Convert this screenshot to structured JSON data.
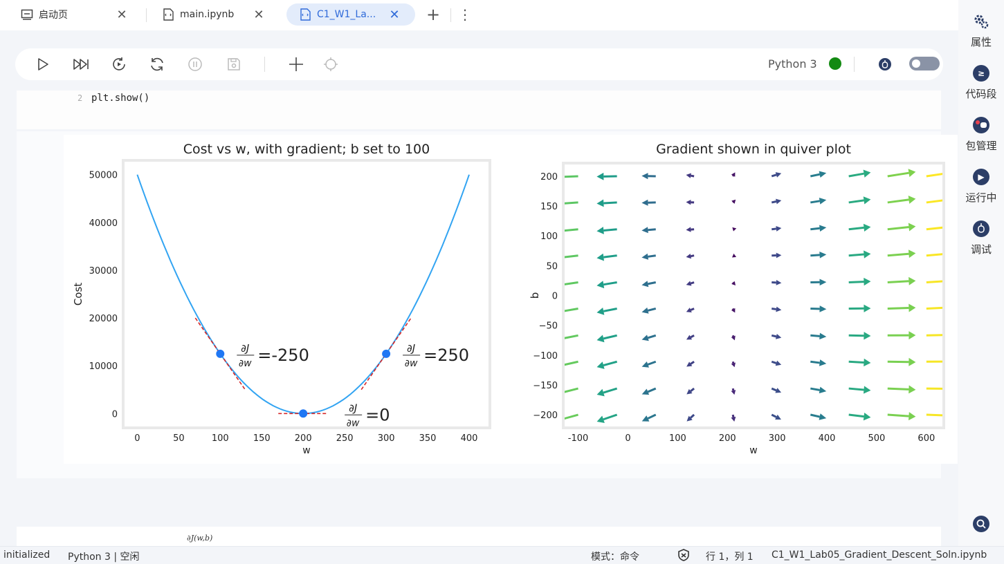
{
  "tabs": [
    {
      "label": "启动页",
      "icon": "launcher-icon"
    },
    {
      "label": "main.ipynb",
      "icon": "notebook-icon"
    },
    {
      "label": "C1_W1_La...",
      "icon": "notebook-icon",
      "active": true
    }
  ],
  "toolbar": {
    "kernel": "Python 3",
    "kernel_status_color": "#138a12"
  },
  "code_cell": {
    "line_number": "2",
    "code": "plt.show()"
  },
  "markdown_fragment": "∂J(w,b)",
  "sidebar": [
    {
      "label": "属性",
      "icon": "gears-icon"
    },
    {
      "label": "代码段",
      "icon": "snippet-icon"
    },
    {
      "label": "包管理",
      "icon": "package-icon"
    },
    {
      "label": "运行中",
      "icon": "running-icon"
    },
    {
      "label": "调试",
      "icon": "debug-icon"
    }
  ],
  "status": {
    "left1": "initialized",
    "left2": "Python 3 | 空闲",
    "mode": "模式：命令",
    "position": "行 1，列 1",
    "file": "C1_W1_Lab05_Gradient_Descent_Soln.ipynb"
  },
  "chart_data": [
    {
      "type": "line",
      "title": "Cost vs w, with gradient; b set to 100",
      "xlabel": "w",
      "ylabel": "Cost",
      "xlim": [
        -17,
        425
      ],
      "ylim": [
        -3000,
        53000
      ],
      "xticks": [
        0,
        50,
        100,
        150,
        200,
        250,
        300,
        350,
        400
      ],
      "yticks": [
        0,
        10000,
        20000,
        30000,
        40000,
        50000
      ],
      "series": [
        {
          "points": [
            [
              0,
              50000
            ],
            [
              25,
              38281
            ],
            [
              50,
              28125
            ],
            [
              75,
              19531
            ],
            [
              100,
              12500
            ],
            [
              125,
              7031
            ],
            [
              150,
              3125
            ],
            [
              175,
              781
            ],
            [
              200,
              0
            ],
            [
              225,
              781
            ],
            [
              250,
              3125
            ],
            [
              275,
              7031
            ],
            [
              300,
              12500
            ],
            [
              325,
              19531
            ],
            [
              350,
              28125
            ],
            [
              375,
              38281
            ],
            [
              400,
              50000
            ]
          ],
          "color": "#32a4f2"
        }
      ],
      "points": [
        [
          100,
          12500
        ],
        [
          200,
          0
        ],
        [
          300,
          12500
        ]
      ],
      "tangents": [
        {
          "from": [
            70,
            20000
          ],
          "to": [
            130,
            5000
          ]
        },
        {
          "from": [
            170,
            0
          ],
          "to": [
            230,
            0
          ]
        },
        {
          "from": [
            270,
            5000
          ],
          "to": [
            330,
            20000
          ]
        }
      ],
      "annotations": [
        {
          "x": 115,
          "y": 12500,
          "text": "=-250"
        },
        {
          "x": 315,
          "y": 12500,
          "text": "=250"
        },
        {
          "x": 245,
          "y": 0,
          "text": "=0"
        }
      ],
      "annotation_fraction": {
        "num": "∂J",
        "den": "∂w"
      },
      "grid": false
    },
    {
      "type": "quiver",
      "title": "Gradient shown in quiver plot",
      "xlabel": "w",
      "ylabel": "b",
      "xlim": [
        -130,
        635
      ],
      "ylim": [
        -222,
        222
      ],
      "xticks": [
        -100,
        0,
        100,
        200,
        300,
        400,
        500,
        600
      ],
      "yticks": [
        -200,
        -150,
        -100,
        -50,
        0,
        50,
        100,
        150,
        200
      ],
      "w_grid": [
        -100,
        -22,
        56,
        133,
        211,
        289,
        367,
        444,
        522,
        600
      ],
      "b_grid": [
        -200,
        -156,
        -111,
        -67,
        -22,
        22,
        67,
        111,
        156,
        200
      ],
      "gradient_model": "dJ/dw ∝ (w-200), dJ/db ∝ (b-100)/40",
      "colormap": "viridis",
      "grid": false
    }
  ]
}
